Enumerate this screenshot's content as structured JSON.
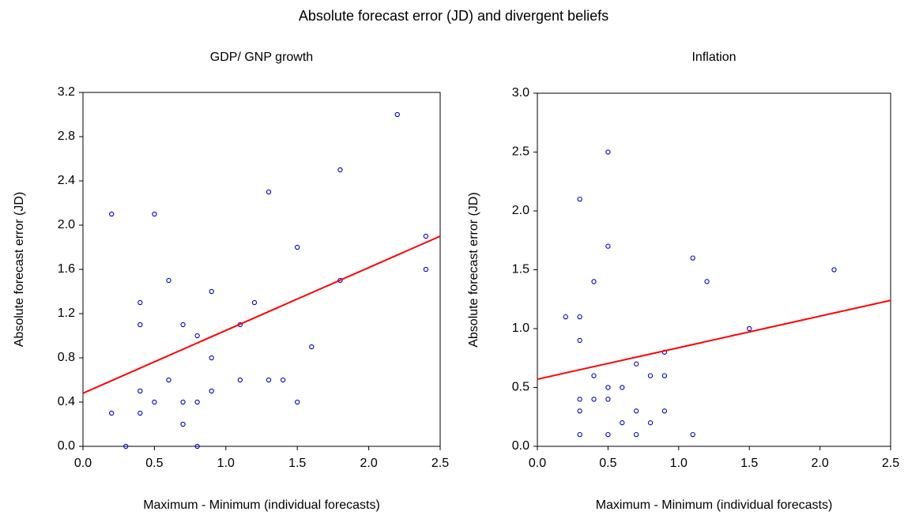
{
  "title": "Absolute forecast error (JD) and divergent beliefs",
  "chart_data": [
    {
      "type": "scatter",
      "title": "GDP/ GNP growth",
      "x_label": "Maximum - Minimum (individual forecasts)",
      "y_label": "Absolute forecast error (JD)",
      "xlim": [
        0,
        2.5
      ],
      "xticks": [
        {
          "value": 0,
          "label": "0.0"
        },
        0.5,
        {
          "value": 1,
          "label": "1.0"
        },
        1.5,
        {
          "value": 2,
          "label": "2.0"
        },
        2.5
      ],
      "ylim": [
        0,
        3.2
      ],
      "yticks": [
        {
          "value": 0,
          "label": "0.0"
        },
        0.4,
        0.8,
        1.2,
        1.6,
        {
          "value": 2,
          "label": "2.0"
        },
        2.4,
        2.8,
        3.2
      ],
      "grid": false,
      "points": {
        "color": "#0000cc",
        "x": [
          0.2,
          0.2,
          0.3,
          0.4,
          0.4,
          0.4,
          0.4,
          0.5,
          0.5,
          0.6,
          0.6,
          0.7,
          0.7,
          0.7,
          0.8,
          0.8,
          0.8,
          0.9,
          0.9,
          0.9,
          1.1,
          1.1,
          1.2,
          1.3,
          1.3,
          1.4,
          1.5,
          1.5,
          1.6,
          1.8,
          1.8,
          2.2,
          2.4,
          2.4
        ],
        "y": [
          2.1,
          0.3,
          0.0,
          1.3,
          1.1,
          0.5,
          0.3,
          2.1,
          0.4,
          1.5,
          0.6,
          1.1,
          0.4,
          0.2,
          1.0,
          0.4,
          0.0,
          1.4,
          0.8,
          0.5,
          1.1,
          0.6,
          1.3,
          2.3,
          0.6,
          0.6,
          1.8,
          0.4,
          0.9,
          2.5,
          1.5,
          3.0,
          1.9,
          1.6
        ]
      },
      "fit_line": {
        "color": "#ff0000",
        "x": [
          0,
          2.5
        ],
        "y": [
          0.48,
          1.9
        ]
      }
    },
    {
      "type": "scatter",
      "title": "Inflation",
      "x_label": "Maximum - Minimum (individual forecasts)",
      "y_label": "Absolute forecast error (JD)",
      "xlim": [
        0,
        2.5
      ],
      "xticks": [
        {
          "value": 0,
          "label": "0.0"
        },
        0.5,
        {
          "value": 1,
          "label": "1.0"
        },
        1.5,
        {
          "value": 2,
          "label": "2.0"
        },
        2.5
      ],
      "ylim": [
        0,
        3
      ],
      "yticks": [
        {
          "value": 0,
          "label": "0.0"
        },
        0.5,
        {
          "value": 1,
          "label": "1.0"
        },
        1.5,
        {
          "value": 2,
          "label": "2.0"
        },
        2.5,
        {
          "value": 3,
          "label": "3.0"
        }
      ],
      "grid": false,
      "points": {
        "color": "#0000cc",
        "x": [
          0.2,
          0.3,
          0.3,
          0.3,
          0.3,
          0.3,
          0.3,
          0.4,
          0.4,
          0.4,
          0.5,
          0.5,
          0.5,
          0.5,
          0.5,
          0.6,
          0.6,
          0.7,
          0.7,
          0.7,
          0.8,
          0.8,
          0.9,
          0.9,
          0.9,
          1.1,
          1.1,
          1.2,
          1.5,
          2.1
        ],
        "y": [
          1.1,
          2.1,
          1.1,
          0.9,
          0.4,
          0.3,
          0.1,
          1.4,
          0.6,
          0.4,
          2.5,
          1.7,
          0.5,
          0.4,
          0.1,
          0.5,
          0.2,
          0.7,
          0.3,
          0.1,
          0.6,
          0.2,
          0.8,
          0.6,
          0.3,
          1.6,
          0.1,
          1.4,
          1.0,
          1.5
        ]
      },
      "fit_line": {
        "color": "#ff0000",
        "x": [
          0,
          2.5
        ],
        "y": [
          0.57,
          1.24
        ]
      }
    }
  ]
}
